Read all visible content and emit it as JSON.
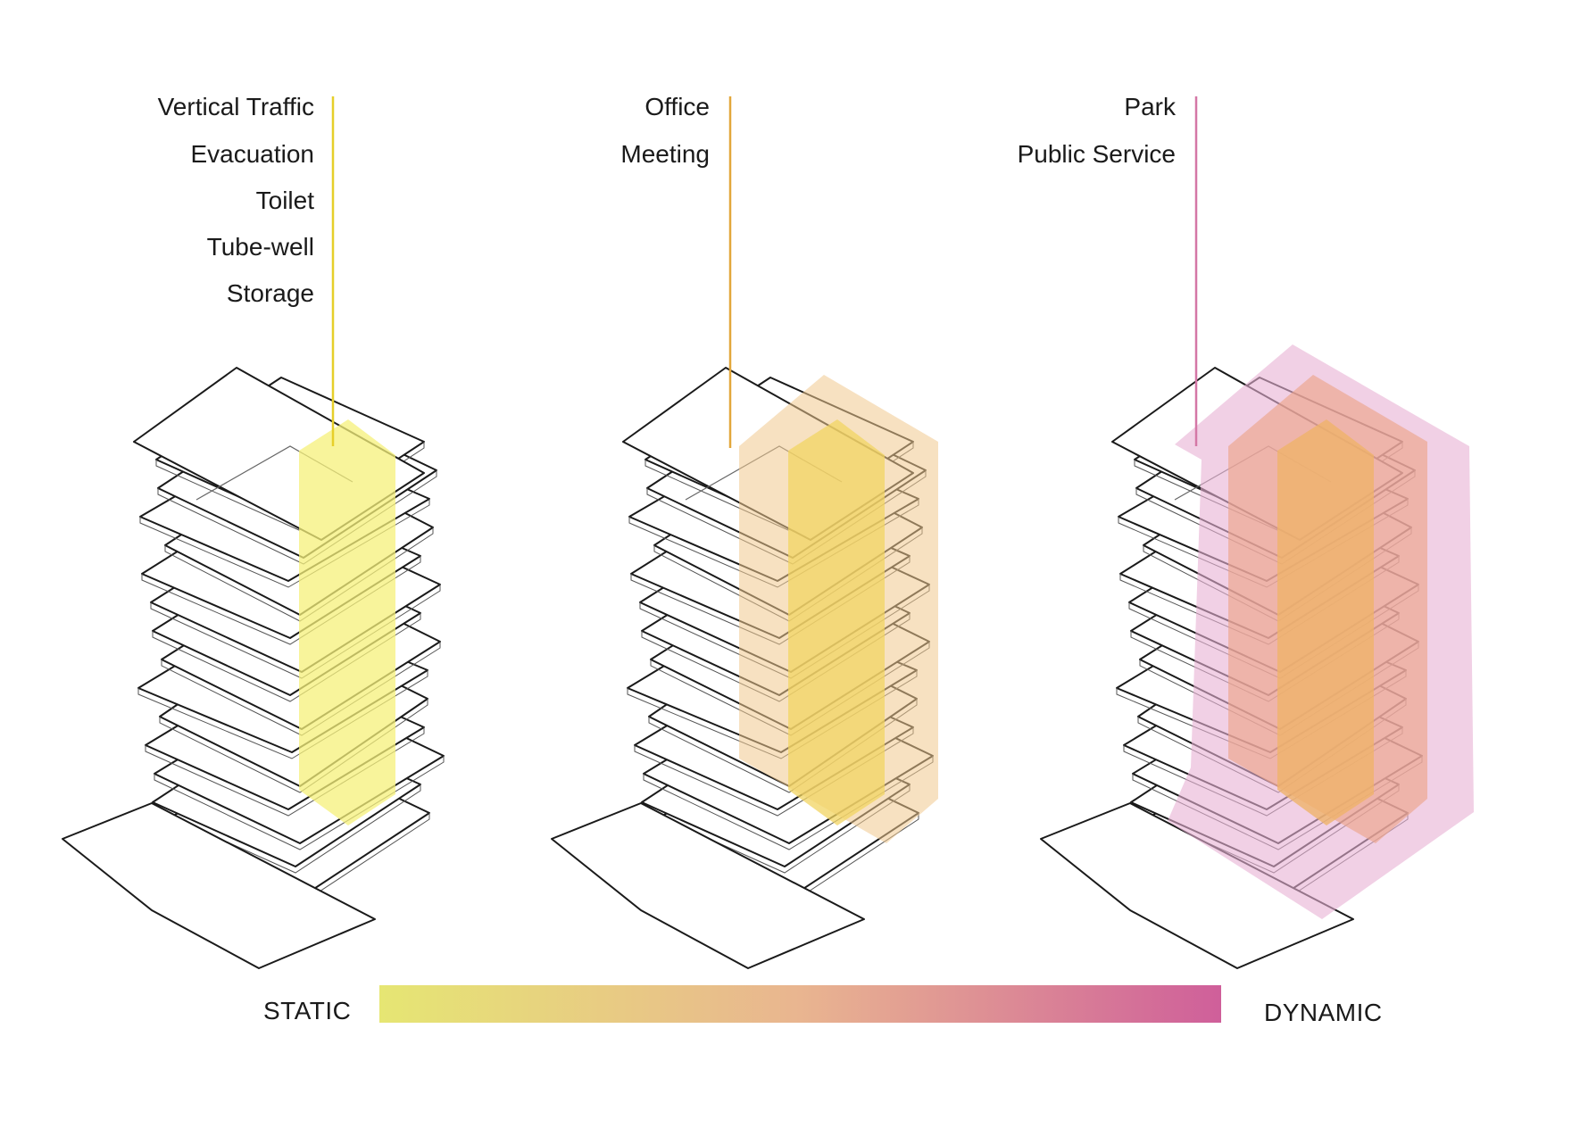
{
  "diagram": {
    "towers": [
      {
        "id": "static",
        "labels": [
          "Vertical Traffic",
          "Evacuation",
          "Toilet",
          "Tube-well",
          "Storage"
        ],
        "leader_color": "#e6cf2a",
        "zones": [
          {
            "name": "core",
            "color": "#f6f07a",
            "opacity": 0.75
          }
        ]
      },
      {
        "id": "semi",
        "labels": [
          "Office",
          "Meeting"
        ],
        "leader_color": "#e2a73c",
        "zones": [
          {
            "name": "office",
            "color": "#f0c98e",
            "opacity": 0.55
          },
          {
            "name": "core",
            "color": "#f2d462",
            "opacity": 0.75
          }
        ]
      },
      {
        "id": "dynamic",
        "labels": [
          "Park",
          "Public Service"
        ],
        "leader_color": "#d477a6",
        "zones": [
          {
            "name": "public",
            "color": "#e7b0d4",
            "opacity": 0.6
          },
          {
            "name": "office",
            "color": "#eca58a",
            "opacity": 0.65
          },
          {
            "name": "core",
            "color": "#efb36a",
            "opacity": 0.8
          }
        ]
      }
    ],
    "scale": {
      "left_label": "STATIC",
      "right_label": "DYNAMIC",
      "gradient_start": "#e6e673",
      "gradient_mid": "#e9b590",
      "gradient_end": "#cf5f9a"
    }
  }
}
